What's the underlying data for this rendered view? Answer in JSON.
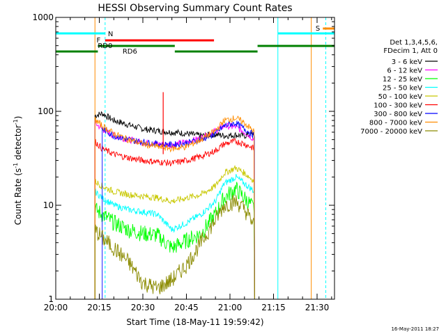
{
  "chart_data": {
    "type": "line",
    "title": "HESSI Observing Summary Count Rates",
    "xlabel": "Start Time (18-May-11 19:59:42)",
    "ylabel_main": "Count Rate (s",
    "ylabel_sup1": "-1",
    "ylabel_mid": " detector",
    "ylabel_sup2": "-1",
    "ylabel_end": ")",
    "y_scale": "log",
    "ylim": [
      1,
      1000
    ],
    "xlim_minutes": [
      0,
      96
    ],
    "x_ticks": [
      {
        "m": 0,
        "label": "20:00"
      },
      {
        "m": 15,
        "label": "20:15"
      },
      {
        "m": 30,
        "label": "20:30"
      },
      {
        "m": 45,
        "label": "20:45"
      },
      {
        "m": 60,
        "label": "21:00"
      },
      {
        "m": 75,
        "label": "21:15"
      },
      {
        "m": 90,
        "label": "21:30"
      }
    ],
    "y_ticks": [
      {
        "v": 1,
        "label": "1"
      },
      {
        "v": 10,
        "label": "10"
      },
      {
        "v": 100,
        "label": "100"
      },
      {
        "v": 1000,
        "label": "1000"
      }
    ],
    "legend_header1": "Det 1,3,4,5,6,",
    "legend_header2": "FDecim 1, Att 0",
    "series": [
      {
        "name": "3 - 6 keV",
        "color": "#000000",
        "x": [
          13.5,
          16,
          20,
          25,
          30,
          35,
          40,
          45,
          50,
          55,
          58,
          62,
          65,
          68.5
        ],
        "y": [
          90,
          95,
          80,
          72,
          65,
          62,
          60,
          58,
          55,
          57,
          55,
          56,
          55,
          58
        ]
      },
      {
        "name": "6 - 12 keV",
        "color": "#ff00ff",
        "x": [
          13.5,
          16,
          20,
          25,
          30,
          35,
          40,
          45,
          50,
          55,
          58,
          62,
          65,
          68.5
        ],
        "y": [
          75,
          65,
          55,
          50,
          47,
          45,
          44,
          47,
          52,
          62,
          70,
          68,
          60,
          50
        ]
      },
      {
        "name": "12 - 25 keV",
        "color": "#00ff00",
        "x": [
          13.5,
          16,
          20,
          25,
          30,
          35,
          40,
          45,
          50,
          55,
          58,
          62,
          65,
          68.5
        ],
        "y": [
          9,
          8,
          6.5,
          5.5,
          5,
          4.8,
          3.5,
          4.2,
          5,
          8,
          12,
          15,
          12,
          9
        ]
      },
      {
        "name": "25 - 50 keV",
        "color": "#00ffff",
        "x": [
          13.5,
          16,
          20,
          25,
          30,
          35,
          40,
          45,
          50,
          55,
          58,
          62,
          65,
          68.5
        ],
        "y": [
          14,
          12,
          10,
          9,
          8.5,
          8,
          5.5,
          6.5,
          8,
          11,
          17,
          20,
          17,
          14
        ]
      },
      {
        "name": "50 - 100 keV",
        "color": "#c8c800",
        "x": [
          13.5,
          16,
          20,
          25,
          30,
          35,
          40,
          45,
          50,
          55,
          58,
          62,
          65,
          68.5
        ],
        "y": [
          18,
          16,
          14,
          13,
          12.5,
          12,
          11,
          12,
          13,
          16,
          22,
          25,
          22,
          18
        ]
      },
      {
        "name": "100 - 300 keV",
        "color": "#ff0000",
        "x": [
          13.5,
          16,
          20,
          25,
          30,
          35,
          40,
          45,
          50,
          55,
          58,
          62,
          65,
          68.5
        ],
        "y": [
          48,
          40,
          35,
          32,
          30,
          29,
          28,
          30,
          33,
          38,
          45,
          48,
          45,
          40
        ]
      },
      {
        "name": "300 - 800 keV",
        "color": "#0000ff",
        "x": [
          16,
          20,
          25,
          30,
          35,
          40,
          45,
          50,
          55,
          58,
          62,
          65,
          68.5
        ],
        "y": [
          65,
          55,
          50,
          47,
          45,
          44,
          46,
          50,
          58,
          70,
          75,
          65,
          55
        ]
      },
      {
        "name": "800 - 7000 keV",
        "color": "#ff8c00",
        "x": [
          13.5,
          16,
          20,
          25,
          30,
          35,
          40,
          45,
          50,
          55,
          58,
          62,
          65,
          68.5
        ],
        "y": [
          82,
          70,
          58,
          50,
          45,
          42,
          40,
          42,
          50,
          62,
          80,
          85,
          75,
          60
        ]
      },
      {
        "name": "7000 - 20000 keV",
        "color": "#8b8b00",
        "x": [
          13.5,
          16,
          20,
          25,
          30,
          35,
          40,
          45,
          50,
          55,
          58,
          62,
          65,
          68.5
        ],
        "y": [
          5.5,
          4.5,
          3.5,
          2.5,
          1.5,
          1.3,
          1.6,
          2.3,
          4,
          7,
          10,
          11,
          9,
          6
        ]
      }
    ],
    "annotations": [
      {
        "label": "N",
        "color": "#00ffff"
      },
      {
        "label": "F",
        "color": "#ff0000"
      },
      {
        "label": "RD0",
        "color": "#008000"
      },
      {
        "label": "RD6",
        "color": "#008000"
      },
      {
        "label": "S",
        "color": "#ff8c00"
      }
    ],
    "timestamp": "16-May-2011 18:27"
  }
}
